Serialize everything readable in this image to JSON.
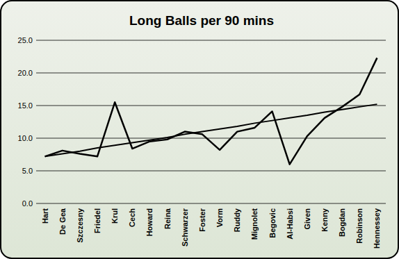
{
  "chart_data": {
    "type": "line",
    "title": "Long Balls per 90 mins",
    "categories": [
      "Hart",
      "De Gea",
      "Szczesny",
      "Friedel",
      "Krul",
      "Cech",
      "Howard",
      "Reina",
      "Schwarzer",
      "Foster",
      "Vorm",
      "Ruddy",
      "Mignolet",
      "Begovic",
      "Al-Habsi",
      "Given",
      "Kenny",
      "Bogdan",
      "Robinson",
      "Hennessey"
    ],
    "series": [
      {
        "color": "#000000",
        "values": [
          7.2,
          8.1,
          7.6,
          7.2,
          15.5,
          8.4,
          9.5,
          9.8,
          11.0,
          10.6,
          8.2,
          11.0,
          11.6,
          14.1,
          6.0,
          10.3,
          13.1,
          14.8,
          16.7,
          22.3
        ]
      },
      {
        "color": "#000000",
        "values": [
          7.2,
          7.6,
          8.0,
          8.5,
          8.9,
          9.3,
          9.7,
          10.1,
          10.6,
          11.0,
          11.4,
          11.8,
          12.3,
          12.7,
          13.1,
          13.5,
          14.0,
          14.4,
          14.8,
          15.2
        ]
      }
    ],
    "ylim": [
      0,
      25
    ],
    "yticks": [
      {
        "value": 0,
        "label": "0.0"
      },
      {
        "value": 5,
        "label": "5.0"
      },
      {
        "value": 10,
        "label": "10.0"
      },
      {
        "value": 15,
        "label": "15.0"
      },
      {
        "value": 20,
        "label": "20.0"
      },
      {
        "value": 25,
        "label": "25.0"
      }
    ],
    "grid": true
  }
}
